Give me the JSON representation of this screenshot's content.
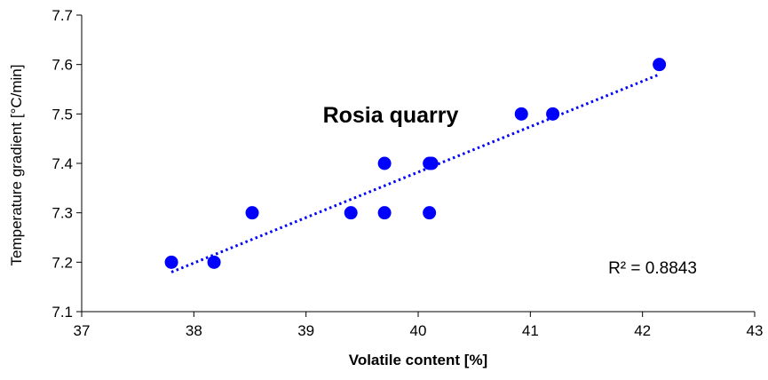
{
  "chart_data": {
    "type": "scatter",
    "title": "Rosia quarry",
    "xlabel": "Volatile content [%]",
    "ylabel": "Temperature gradient [°C/min]",
    "xlim": [
      37,
      43
    ],
    "ylim": [
      7.1,
      7.7
    ],
    "x_ticks": [
      "37",
      "38",
      "39",
      "40",
      "41",
      "42",
      "43"
    ],
    "y_ticks": [
      "7.1",
      "7.2",
      "7.3",
      "7.4",
      "7.5",
      "7.6",
      "7.7"
    ],
    "grid": false,
    "marker_color": "#0000FF",
    "trendline": {
      "type": "linear",
      "style": "dotted",
      "color": "#0000FF",
      "x_range": [
        37.8,
        42.15
      ],
      "y_range": [
        7.18,
        7.58
      ],
      "r2_label": "R² = 0.8843"
    },
    "points": [
      {
        "x": 37.8,
        "y": 7.2
      },
      {
        "x": 38.18,
        "y": 7.2
      },
      {
        "x": 38.52,
        "y": 7.3
      },
      {
        "x": 39.4,
        "y": 7.3
      },
      {
        "x": 39.7,
        "y": 7.3
      },
      {
        "x": 39.7,
        "y": 7.4
      },
      {
        "x": 40.1,
        "y": 7.3
      },
      {
        "x": 40.1,
        "y": 7.4
      },
      {
        "x": 40.12,
        "y": 7.4
      },
      {
        "x": 40.92,
        "y": 7.5
      },
      {
        "x": 41.2,
        "y": 7.5
      },
      {
        "x": 42.15,
        "y": 7.6
      }
    ]
  }
}
